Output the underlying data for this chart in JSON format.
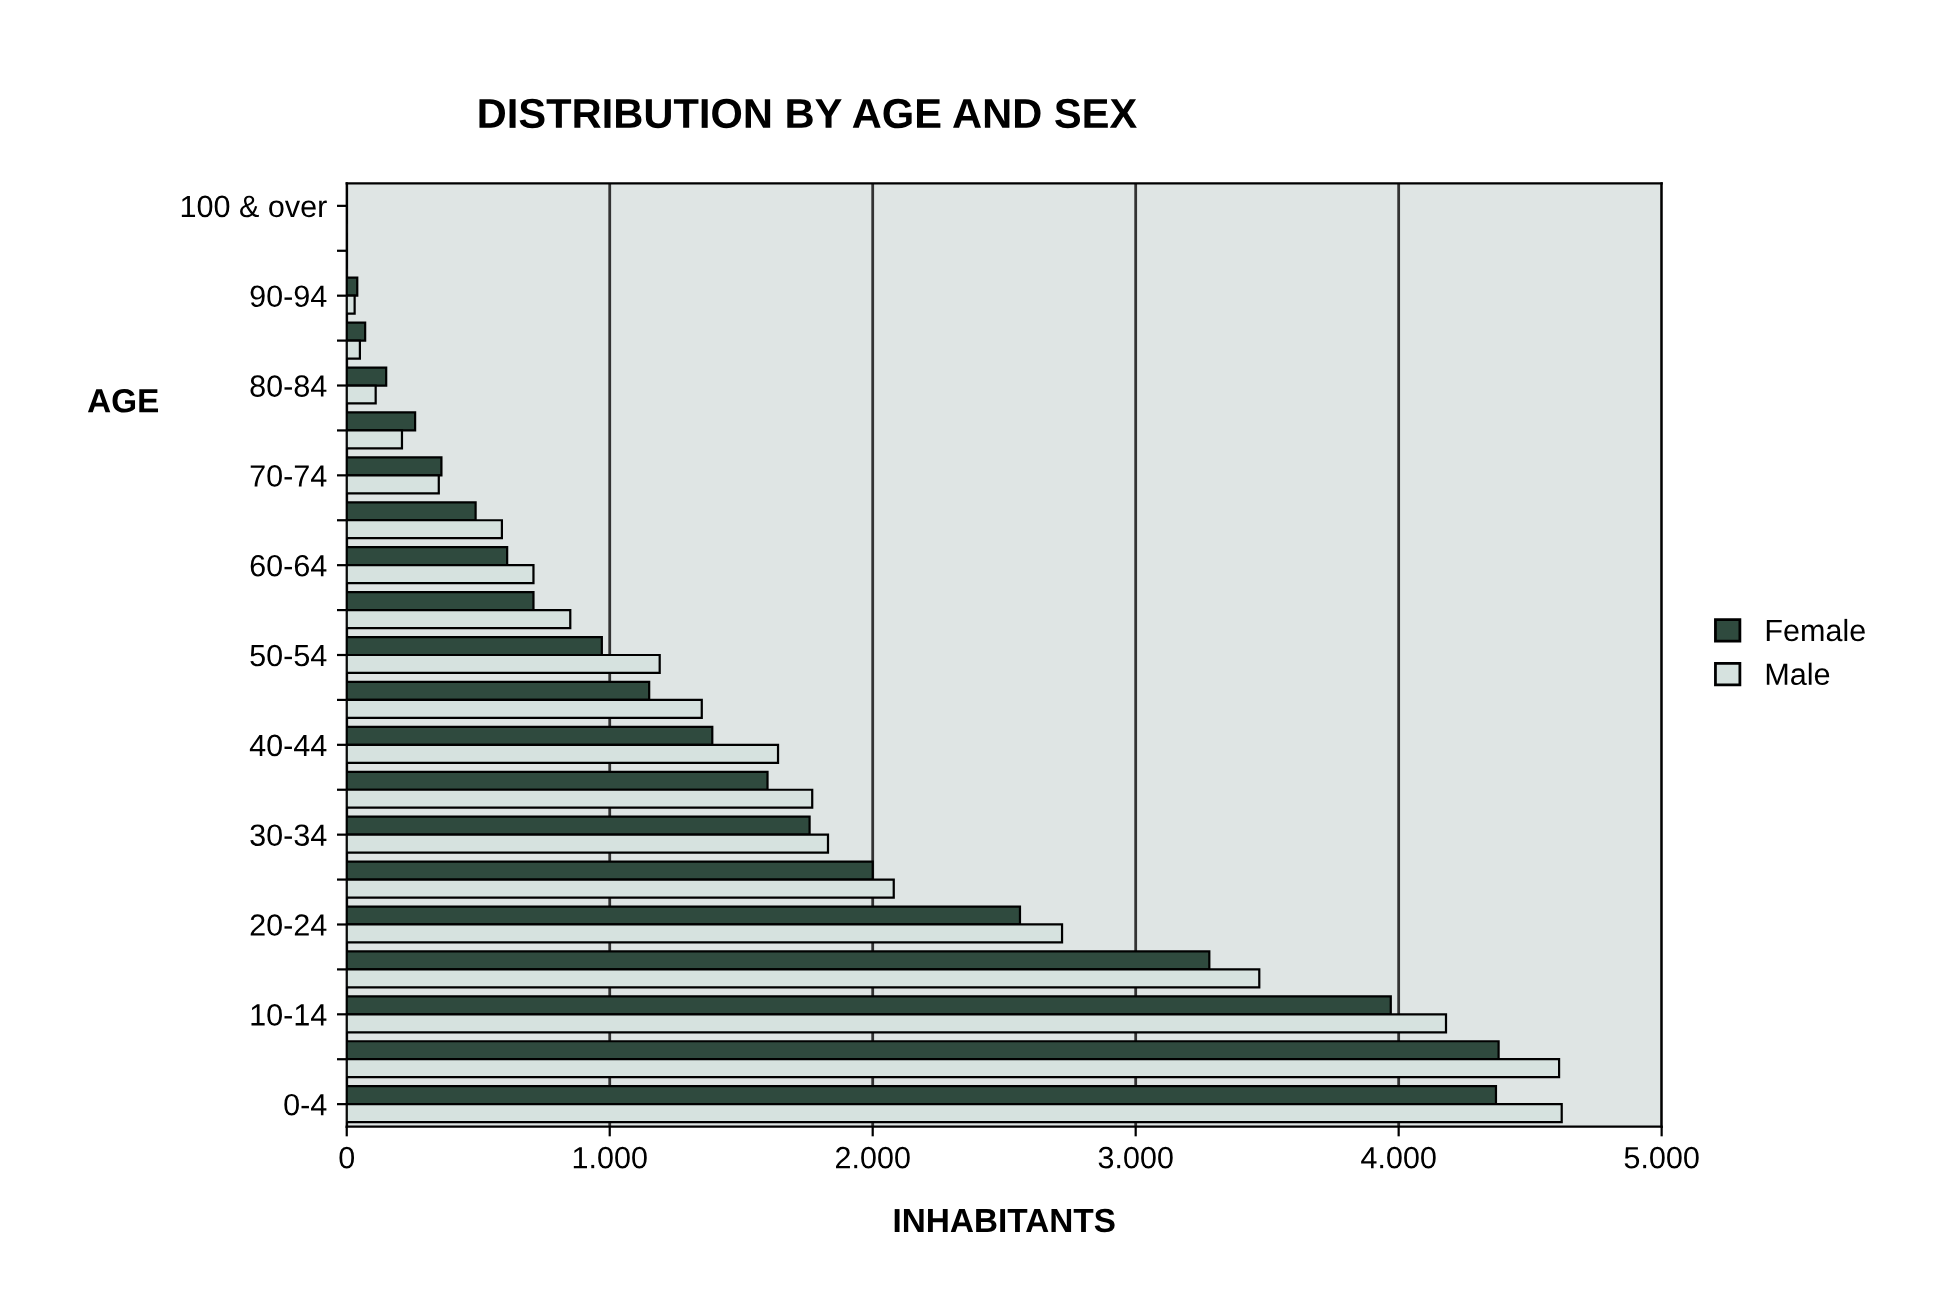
{
  "chart_data": {
    "type": "bar",
    "orientation": "horizontal",
    "title": "DISTRIBUTION BY AGE AND SEX",
    "xlabel": "INHABITANTS",
    "ylabel": "AGE",
    "categories": [
      "100 & over",
      null,
      "90-94",
      null,
      "80-84",
      null,
      "70-74",
      null,
      "60-64",
      null,
      "50-54",
      null,
      "40-44",
      null,
      "30-34",
      null,
      "20-24",
      null,
      "10-14",
      null,
      "0-4"
    ],
    "series": [
      {
        "name": "Female",
        "color": "#2f4a3e",
        "values": [
          0,
          0,
          40,
          70,
          150,
          260,
          360,
          490,
          610,
          710,
          970,
          1150,
          1390,
          1600,
          1760,
          2000,
          2560,
          3280,
          3970,
          4380,
          4370
        ]
      },
      {
        "name": "Male",
        "color": "#d6e2df",
        "values": [
          0,
          0,
          30,
          50,
          110,
          210,
          350,
          590,
          710,
          850,
          1190,
          1350,
          1640,
          1770,
          1830,
          2080,
          2720,
          3470,
          4180,
          4610,
          4620
        ]
      }
    ],
    "xlim": [
      0,
      5000
    ],
    "xticks": [
      0,
      {
        "value": 1000,
        "label": "1.000"
      },
      {
        "value": 2000,
        "label": "2.000"
      },
      {
        "value": 3000,
        "label": "3.000"
      },
      {
        "value": 4000,
        "label": "4.000"
      },
      {
        "value": 5000,
        "label": "5.000"
      }
    ],
    "grid": "x",
    "legend": "right"
  }
}
